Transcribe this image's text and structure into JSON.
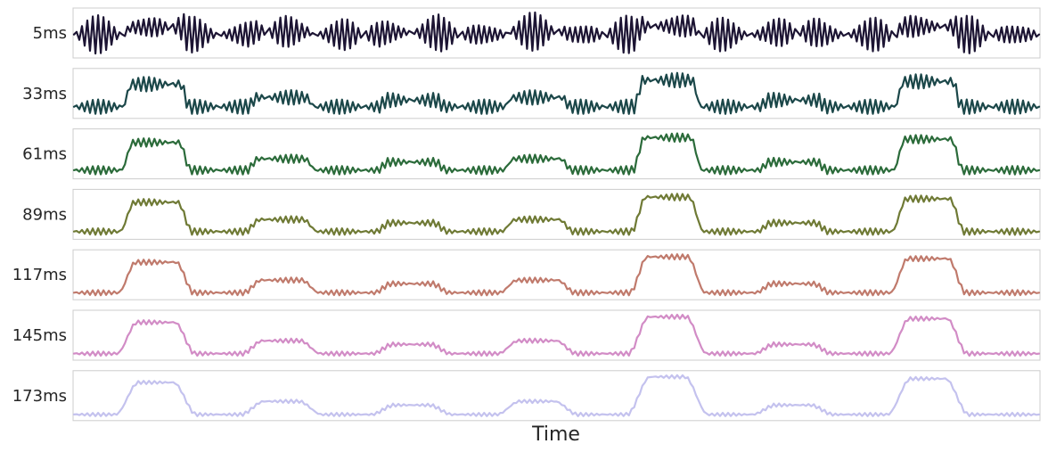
{
  "chart_data": {
    "type": "line",
    "title": "",
    "xlabel": "Time",
    "ylabel": "",
    "grid": false,
    "legend": "none",
    "x_ticks_shown": false,
    "y_ticks_shown": false,
    "num_samples": 360,
    "pulses": [
      {
        "start": 0.055,
        "end": 0.115,
        "level": 0.85
      },
      {
        "start": 0.185,
        "end": 0.245,
        "level": 0.35
      },
      {
        "start": 0.32,
        "end": 0.38,
        "level": 0.25
      },
      {
        "start": 0.45,
        "end": 0.51,
        "level": 0.35
      },
      {
        "start": 0.585,
        "end": 0.645,
        "level": 1.0
      },
      {
        "start": 0.715,
        "end": 0.775,
        "level": 0.25
      },
      {
        "start": 0.855,
        "end": 0.915,
        "level": 0.95
      }
    ],
    "carrier_cycles": 170,
    "series": [
      {
        "name": "5ms",
        "window_ms": 5,
        "color": "#1c1433",
        "pulse_amp": 0.18,
        "ripple_amp": 0.82
      },
      {
        "name": "33ms",
        "window_ms": 33,
        "color": "#1b4749",
        "pulse_amp": 0.55,
        "ripple_amp": 0.3
      },
      {
        "name": "61ms",
        "window_ms": 61,
        "color": "#2b6b3a",
        "pulse_amp": 0.7,
        "ripple_amp": 0.18
      },
      {
        "name": "89ms",
        "window_ms": 89,
        "color": "#6f7a35",
        "pulse_amp": 0.74,
        "ripple_amp": 0.14
      },
      {
        "name": "117ms",
        "window_ms": 117,
        "color": "#c07a6c",
        "pulse_amp": 0.76,
        "ripple_amp": 0.11
      },
      {
        "name": "145ms",
        "window_ms": 145,
        "color": "#d28cc6",
        "pulse_amp": 0.78,
        "ripple_amp": 0.09
      },
      {
        "name": "173ms",
        "window_ms": 173,
        "color": "#c4c2ee",
        "pulse_amp": 0.8,
        "ripple_amp": 0.07
      }
    ]
  }
}
